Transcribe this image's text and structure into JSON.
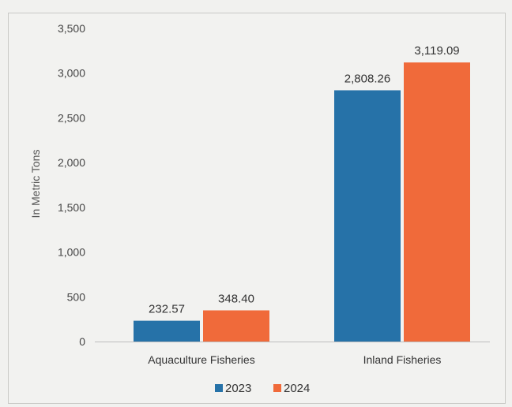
{
  "chart_data": {
    "type": "bar",
    "title": "",
    "xlabel": "",
    "ylabel": "In  Metric Tons",
    "categories": [
      "Aquaculture Fisheries",
      "Inland Fisheries"
    ],
    "series": [
      {
        "name": "2023",
        "values": [
          232.57,
          2808.26
        ],
        "labels": [
          "232.57",
          "2,808.26"
        ],
        "color": "#2672a8"
      },
      {
        "name": "2024",
        "values": [
          348.4,
          3119.09
        ],
        "labels": [
          "348.40",
          "3,119.09"
        ],
        "color": "#f06a3a"
      }
    ],
    "ylim": [
      0,
      3500
    ],
    "yticks": [
      "0",
      "500",
      "1,000",
      "1,500",
      "2,000",
      "2,500",
      "3,000",
      "3,500"
    ],
    "ytick_values": [
      0,
      500,
      1000,
      1500,
      2000,
      2500,
      3000,
      3500
    ],
    "grid": false,
    "legend": "bottom"
  }
}
